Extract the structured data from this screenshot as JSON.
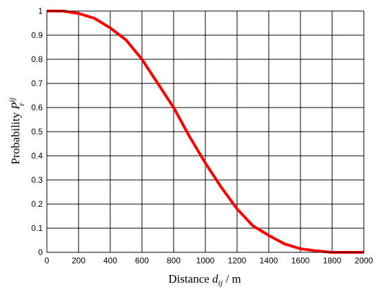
{
  "chart_data": {
    "type": "line",
    "title": "",
    "xlabel": {
      "prefix": "Distance ",
      "symbol": "d",
      "subscript": "ij",
      "suffix": " / m"
    },
    "ylabel": {
      "prefix": "Probability ",
      "symbol": "P",
      "superscript": "ij",
      "subscript": "r"
    },
    "xlim": [
      0,
      2000
    ],
    "ylim": [
      0,
      1
    ],
    "xticks": [
      0,
      200,
      400,
      600,
      800,
      1000,
      1200,
      1400,
      1600,
      1800,
      2000
    ],
    "yticks": [
      0,
      0.1,
      0.2,
      0.3,
      0.4,
      0.5,
      0.6,
      0.7,
      0.8,
      0.9,
      1
    ],
    "grid": true,
    "legend": "none",
    "series": [
      {
        "color": "#ff0000",
        "x": [
          0,
          100,
          200,
          300,
          400,
          500,
          600,
          700,
          800,
          900,
          1000,
          1100,
          1200,
          1300,
          1400,
          1500,
          1600,
          1700,
          1800,
          1900,
          2000
        ],
        "y": [
          1.0,
          1.0,
          0.99,
          0.97,
          0.93,
          0.88,
          0.8,
          0.7,
          0.6,
          0.48,
          0.37,
          0.27,
          0.18,
          0.11,
          0.07,
          0.035,
          0.015,
          0.006,
          0.0,
          0.0,
          0.0
        ]
      }
    ]
  }
}
